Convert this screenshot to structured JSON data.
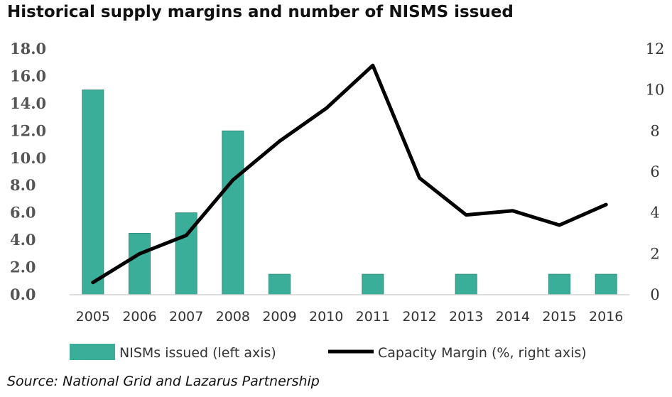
{
  "title": "Historical supply margins and number of NISMS issued",
  "source": "Source: National Grid and Lazarus Partnership",
  "chart_data": {
    "type": "bar+line",
    "categories": [
      "2005",
      "2006",
      "2007",
      "2008",
      "2009",
      "2010",
      "2011",
      "2012",
      "2013",
      "2014",
      "2015",
      "2016"
    ],
    "left_axis": {
      "ylim": [
        0,
        18
      ],
      "ticks": [
        "0.0",
        "2.0",
        "4.0",
        "6.0",
        "8.0",
        "10.0",
        "12.0",
        "14.0",
        "16.0",
        "18.0"
      ]
    },
    "right_axis": {
      "ylim": [
        0,
        12
      ],
      "ticks": [
        "0",
        "2",
        "4",
        "6",
        "8",
        "10",
        "12"
      ]
    },
    "series": [
      {
        "name": "NISMs issued (left axis)",
        "type": "bar",
        "axis": "left",
        "color": "#3BAE9A",
        "values": [
          15,
          4.5,
          6,
          12,
          1.5,
          0,
          1.5,
          0,
          1.5,
          0,
          1.5,
          1.5
        ]
      },
      {
        "name": "Capacity Margin (%, right axis)",
        "type": "line",
        "axis": "right",
        "color": "#000000",
        "values": [
          0.6,
          2.0,
          2.9,
          5.6,
          7.5,
          9.1,
          11.2,
          5.7,
          3.9,
          4.1,
          3.4,
          4.4
        ]
      }
    ],
    "grid": false,
    "legend": "bottom"
  }
}
